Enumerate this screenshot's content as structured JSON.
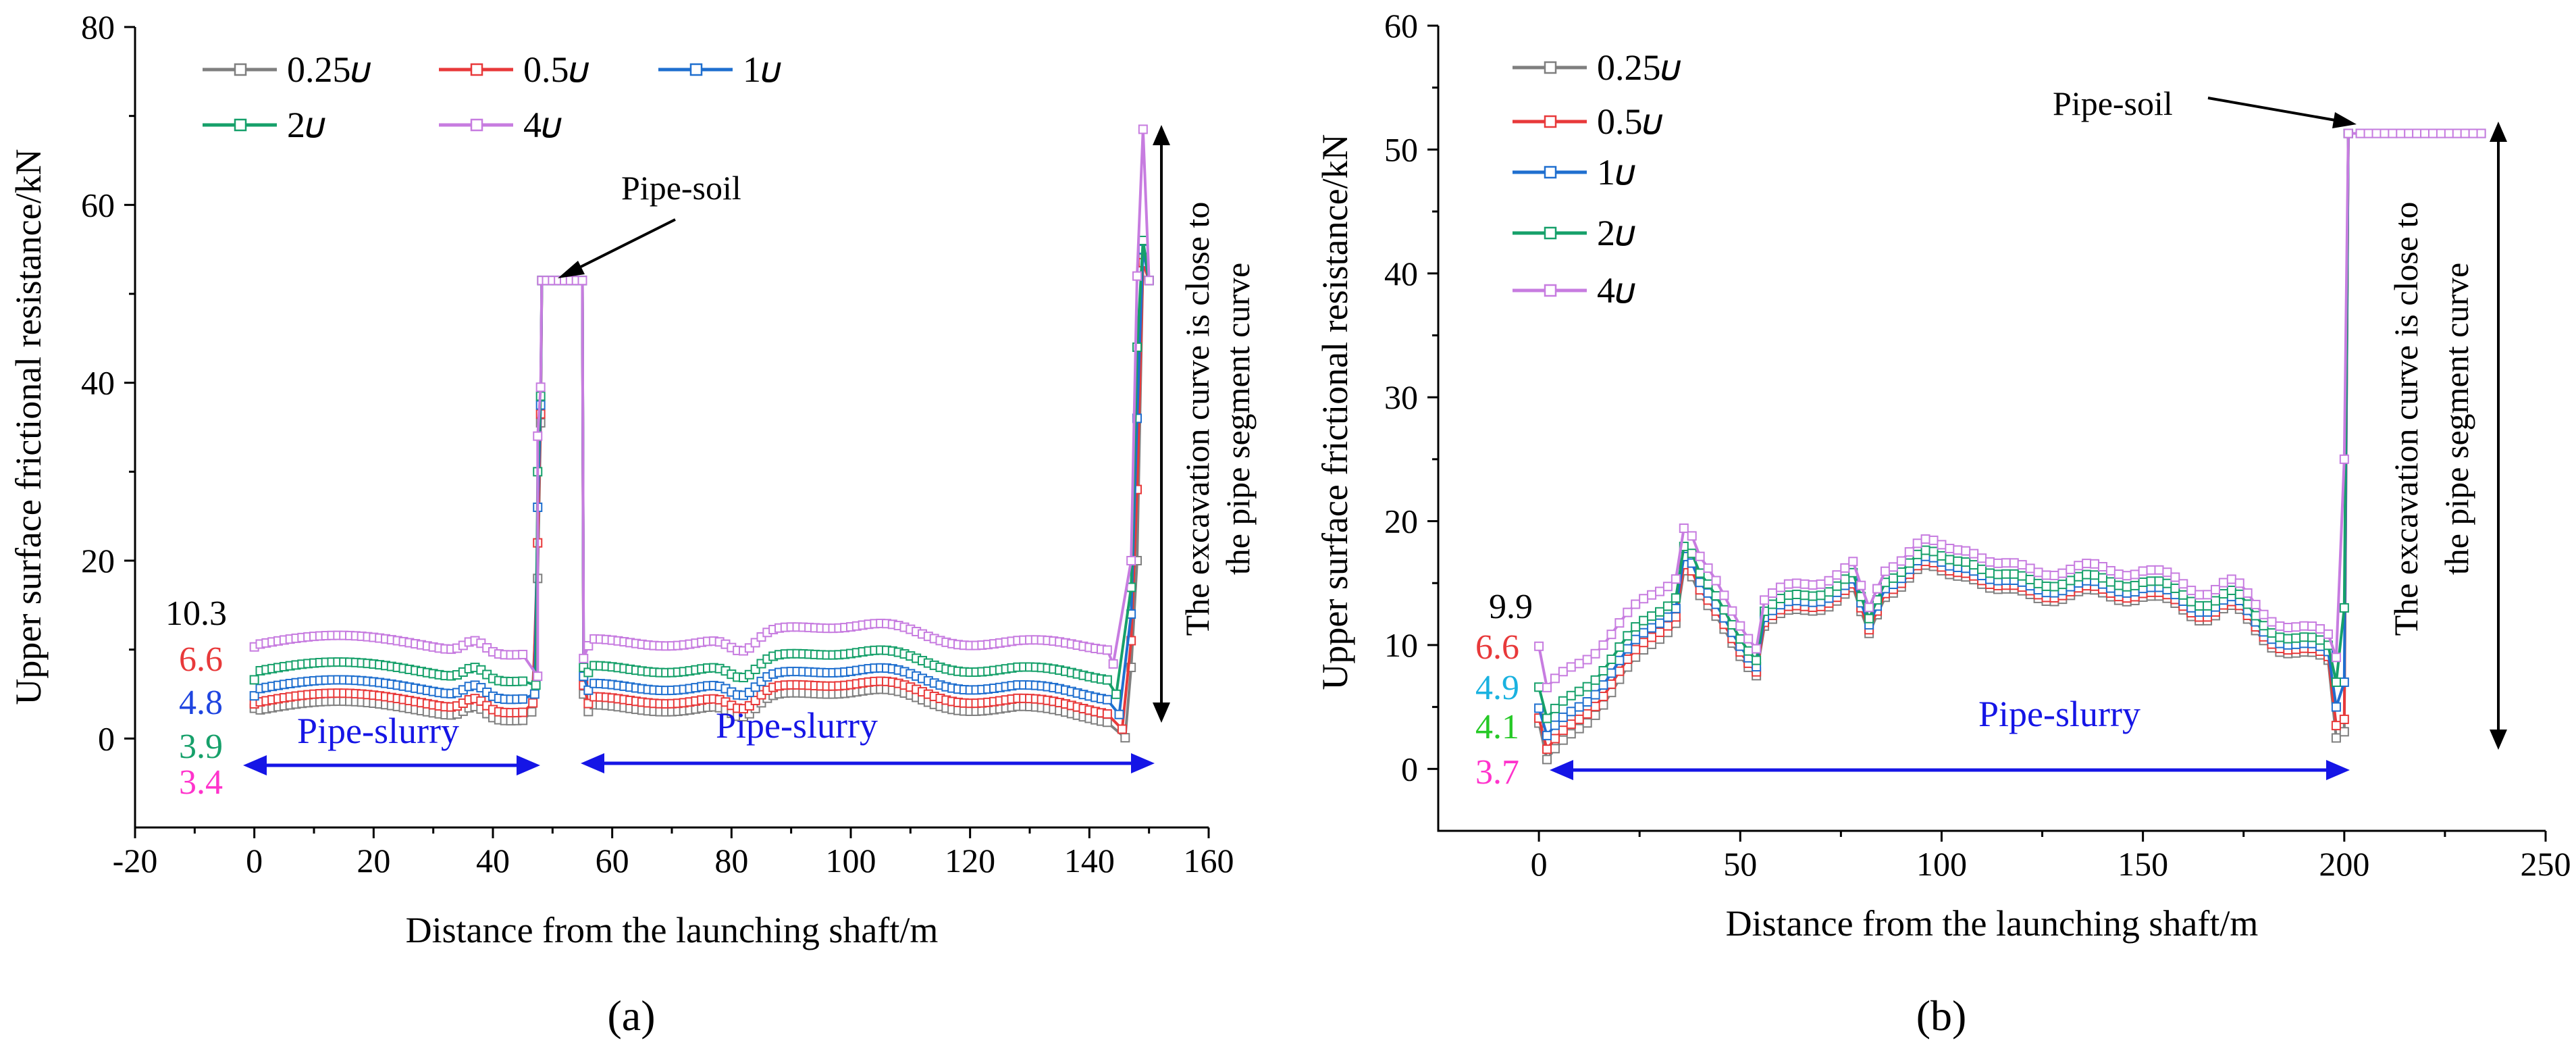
{
  "colors": {
    "s025": "#7f7f7f",
    "s05": "#e8393a",
    "s1": "#1f6fcf",
    "s2": "#16a06a",
    "s4": "#c77ce0",
    "blue_arrow": "#1515e6",
    "text_black": "#000000",
    "label_red": "#e8393a",
    "label_blue": "#1f45e0",
    "label_green": "#16a06a",
    "label_magenta": "#ff33cc",
    "label_cyan": "#1ab2e0",
    "label_green2": "#26c926"
  },
  "legend_labels": [
    "0.25𝜐",
    "0.5𝜐",
    "1𝜐",
    "2𝜐",
    "4𝜐"
  ],
  "chart_data": [
    {
      "type": "line",
      "panel_label": "(a)",
      "xlabel": "Distance from the launching shaft/m",
      "ylabel": "Upper surface frictional resistance/kN",
      "xlim": [
        -20,
        160
      ],
      "ylim": [
        -10,
        80
      ],
      "x_ticks": [
        -20,
        0,
        20,
        40,
        60,
        80,
        100,
        120,
        140,
        160
      ],
      "y_ticks": [
        0,
        20,
        40,
        60,
        80
      ],
      "legend_position": "top-left",
      "grid": false,
      "series_names": [
        "0.25𝜐",
        "0.5𝜐",
        "1𝜐",
        "2𝜐",
        "4𝜐"
      ],
      "start_values": [
        "10.3",
        "6.6",
        "4.8",
        "3.9",
        "3.4"
      ],
      "pipe_soil_label": "Pipe-soil",
      "pipe_slurry_labels": [
        "Pipe-slurry",
        "Pipe-slurry"
      ],
      "right_note_lines": [
        "The excavation curve is close to",
        "the pipe segment curve"
      ],
      "key_points": {
        "pipe_soil_plateau": {
          "x": [
            48,
            55
          ],
          "y": 51.5
        },
        "peak_at_end": {
          "x": 149,
          "y": 68.5
        }
      }
    },
    {
      "type": "line",
      "panel_label": "(b)",
      "xlabel": "Distance from the launching shaft/m",
      "ylabel": "Upper surface frictional resistance/kN",
      "xlim": [
        -25,
        250
      ],
      "ylim": [
        -5,
        60
      ],
      "x_ticks": [
        0,
        50,
        100,
        150,
        200,
        250
      ],
      "y_ticks": [
        0,
        10,
        20,
        30,
        40,
        50,
        60
      ],
      "legend_position": "top-left",
      "grid": false,
      "series_names": [
        "0.25𝜐",
        "0.5𝜐",
        "1𝜐",
        "2𝜐",
        "4𝜐"
      ],
      "start_values": [
        "9.9",
        "6.6",
        "4.9",
        "4.1",
        "3.7"
      ],
      "pipe_soil_label": "Pipe-soil",
      "pipe_slurry_labels": [
        "Pipe-slurry"
      ],
      "right_note_lines": [
        "The excavation curve is close to",
        "the pipe segment curve"
      ],
      "key_points": {
        "pipe_soil_plateau": {
          "x": [
            201,
            234
          ],
          "y": 51.3
        }
      }
    }
  ]
}
